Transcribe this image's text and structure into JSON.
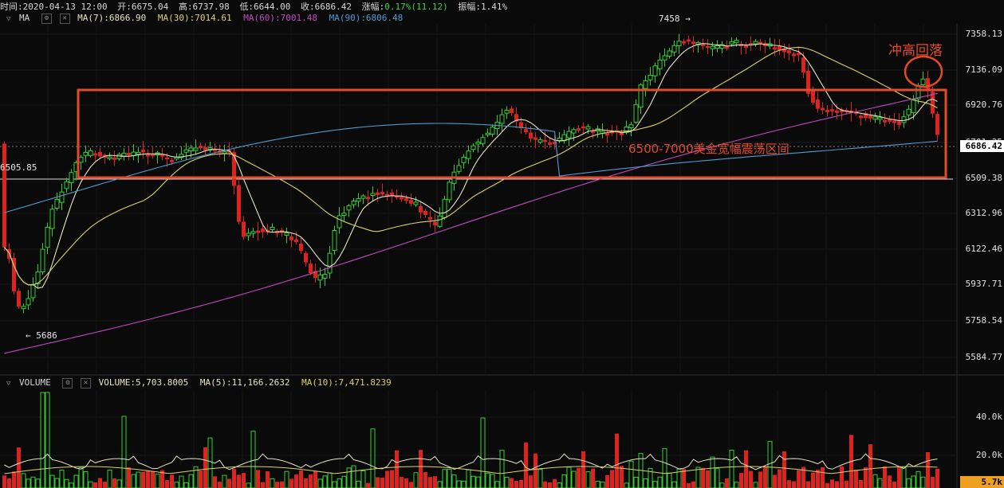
{
  "info_bar": {
    "time": "时间:2020-04-13 12:00",
    "open": "开:6675.04",
    "high": "高:6737.98",
    "low": "低:6644.00",
    "close": "收:6686.42",
    "change_label": "涨幅:",
    "change_value": "0.17%(11.12)",
    "amplitude": "振幅:1.41%"
  },
  "ma_indicator": {
    "name": "MA",
    "ma7": "MA(7):6866.90",
    "ma30": "MA(30):7014.61",
    "ma60": "MA(60):7001.48",
    "ma90": "MA(90):6806.48"
  },
  "volume_indicator": {
    "name": "VOLUME",
    "volume": "VOLUME:5,703.8005",
    "ma5": "MA(5):11,166.2632",
    "ma10": "MA(10):7,471.8239"
  },
  "price_axis": [
    "7358.13",
    "7136.09",
    "6920.76",
    "6701.35",
    "6509.38",
    "6312.96",
    "6122.46",
    "5937.71",
    "5758.54",
    "5584.77"
  ],
  "volume_axis": [
    "40.0k",
    "20.0k"
  ],
  "current_price": "6686.42",
  "current_volume": "5.7k",
  "left_level": "6505.85",
  "high_mark": "7458 →",
  "low_mark": "← 5686",
  "annotations": {
    "range": "6500-7000美金宽幅震荡区间",
    "pullback": "冲高回落"
  },
  "colors": {
    "background": "#0a0a0a",
    "up": "#2fd12f",
    "down": "#e0221e",
    "ma7": "#e8e4c8",
    "ma30": "#d9d36a",
    "ma60": "#c04ac0",
    "ma90": "#4f9bd0",
    "annotation": "#e34a2a",
    "price_tag": "#ffffff",
    "volume_tag": "#f0a020"
  },
  "chart_data": {
    "type": "candlestick",
    "price_range": [
      5584.77,
      7358.13
    ],
    "highest": 7458,
    "lowest": 5686,
    "range_box": [
      6500,
      7000
    ],
    "last_close": 6686.42,
    "ma_values_last": {
      "MA7": 6866.9,
      "MA30": 7014.61,
      "MA60": 7001.48,
      "MA90": 6806.48
    },
    "volume_last": 5703.8005,
    "volume_ma_last": {
      "MA5": 11166.2632,
      "MA10": 7471.8239
    }
  }
}
